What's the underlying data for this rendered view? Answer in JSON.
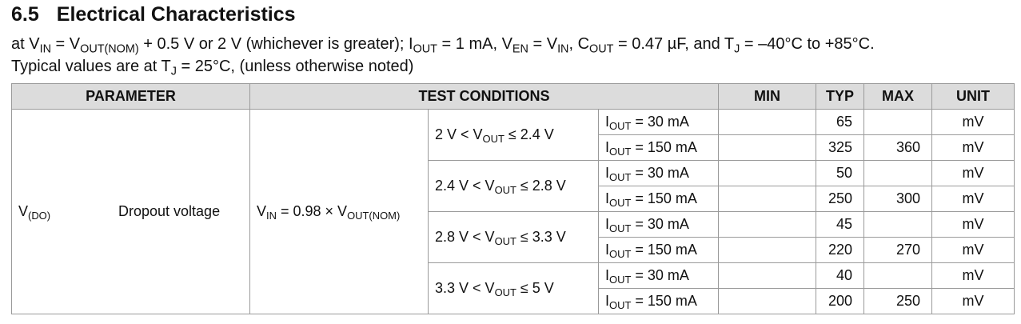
{
  "heading": {
    "number": "6.5",
    "title": "Electrical Characteristics"
  },
  "conditions": [
    [
      "at V",
      "IN",
      " = V",
      "OUT(NOM)",
      " + 0.5 V or 2 V (whichever is greater); I",
      "OUT",
      " = 1 mA, V",
      "EN",
      " = V",
      "IN",
      ", C",
      "OUT",
      " = 0.47 µF, and T",
      "J",
      " = –40°C to +85°C."
    ],
    [
      "Typical values are at T",
      "J",
      " = 25°C, (unless otherwise noted)"
    ]
  ],
  "table": {
    "headers": [
      "PARAMETER",
      "TEST CONDITIONS",
      "MIN",
      "TYP",
      "MAX",
      "UNIT"
    ],
    "parameter": {
      "symbol": [
        "V",
        "(DO)"
      ],
      "name": "Dropout voltage"
    },
    "condition": [
      "V",
      "IN",
      " = 0.98 × V",
      "OUT(NOM)"
    ],
    "groups": [
      {
        "range": [
          "2 V < V",
          "OUT",
          " ≤ 2.4 V"
        ],
        "rows": [
          {
            "load": [
              "I",
              "OUT",
              " = 30 mA"
            ],
            "typ": 65,
            "unit": "mV"
          },
          {
            "load": [
              "I",
              "OUT",
              " = 150 mA"
            ],
            "typ": 325,
            "max": 360,
            "unit": "mV"
          }
        ]
      },
      {
        "range": [
          "2.4 V < V",
          "OUT",
          " ≤ 2.8 V"
        ],
        "rows": [
          {
            "load": [
              "I",
              "OUT",
              " = 30 mA"
            ],
            "typ": 50,
            "unit": "mV"
          },
          {
            "load": [
              "I",
              "OUT",
              " = 150 mA"
            ],
            "typ": 250,
            "max": 300,
            "unit": "mV"
          }
        ]
      },
      {
        "range": [
          "2.8 V < V",
          "OUT",
          " ≤ 3.3 V"
        ],
        "rows": [
          {
            "load": [
              "I",
              "OUT",
              " = 30 mA"
            ],
            "typ": 45,
            "unit": "mV"
          },
          {
            "load": [
              "I",
              "OUT",
              " = 150 mA"
            ],
            "typ": 220,
            "max": 270,
            "unit": "mV"
          }
        ]
      },
      {
        "range": [
          "3.3 V < V",
          "OUT",
          " ≤ 5 V"
        ],
        "rows": [
          {
            "load": [
              "I",
              "OUT",
              " = 30 mA"
            ],
            "typ": 40,
            "unit": "mV"
          },
          {
            "load": [
              "I",
              "OUT",
              " = 150 mA"
            ],
            "typ": 200,
            "max": 250,
            "unit": "mV"
          }
        ]
      }
    ]
  }
}
